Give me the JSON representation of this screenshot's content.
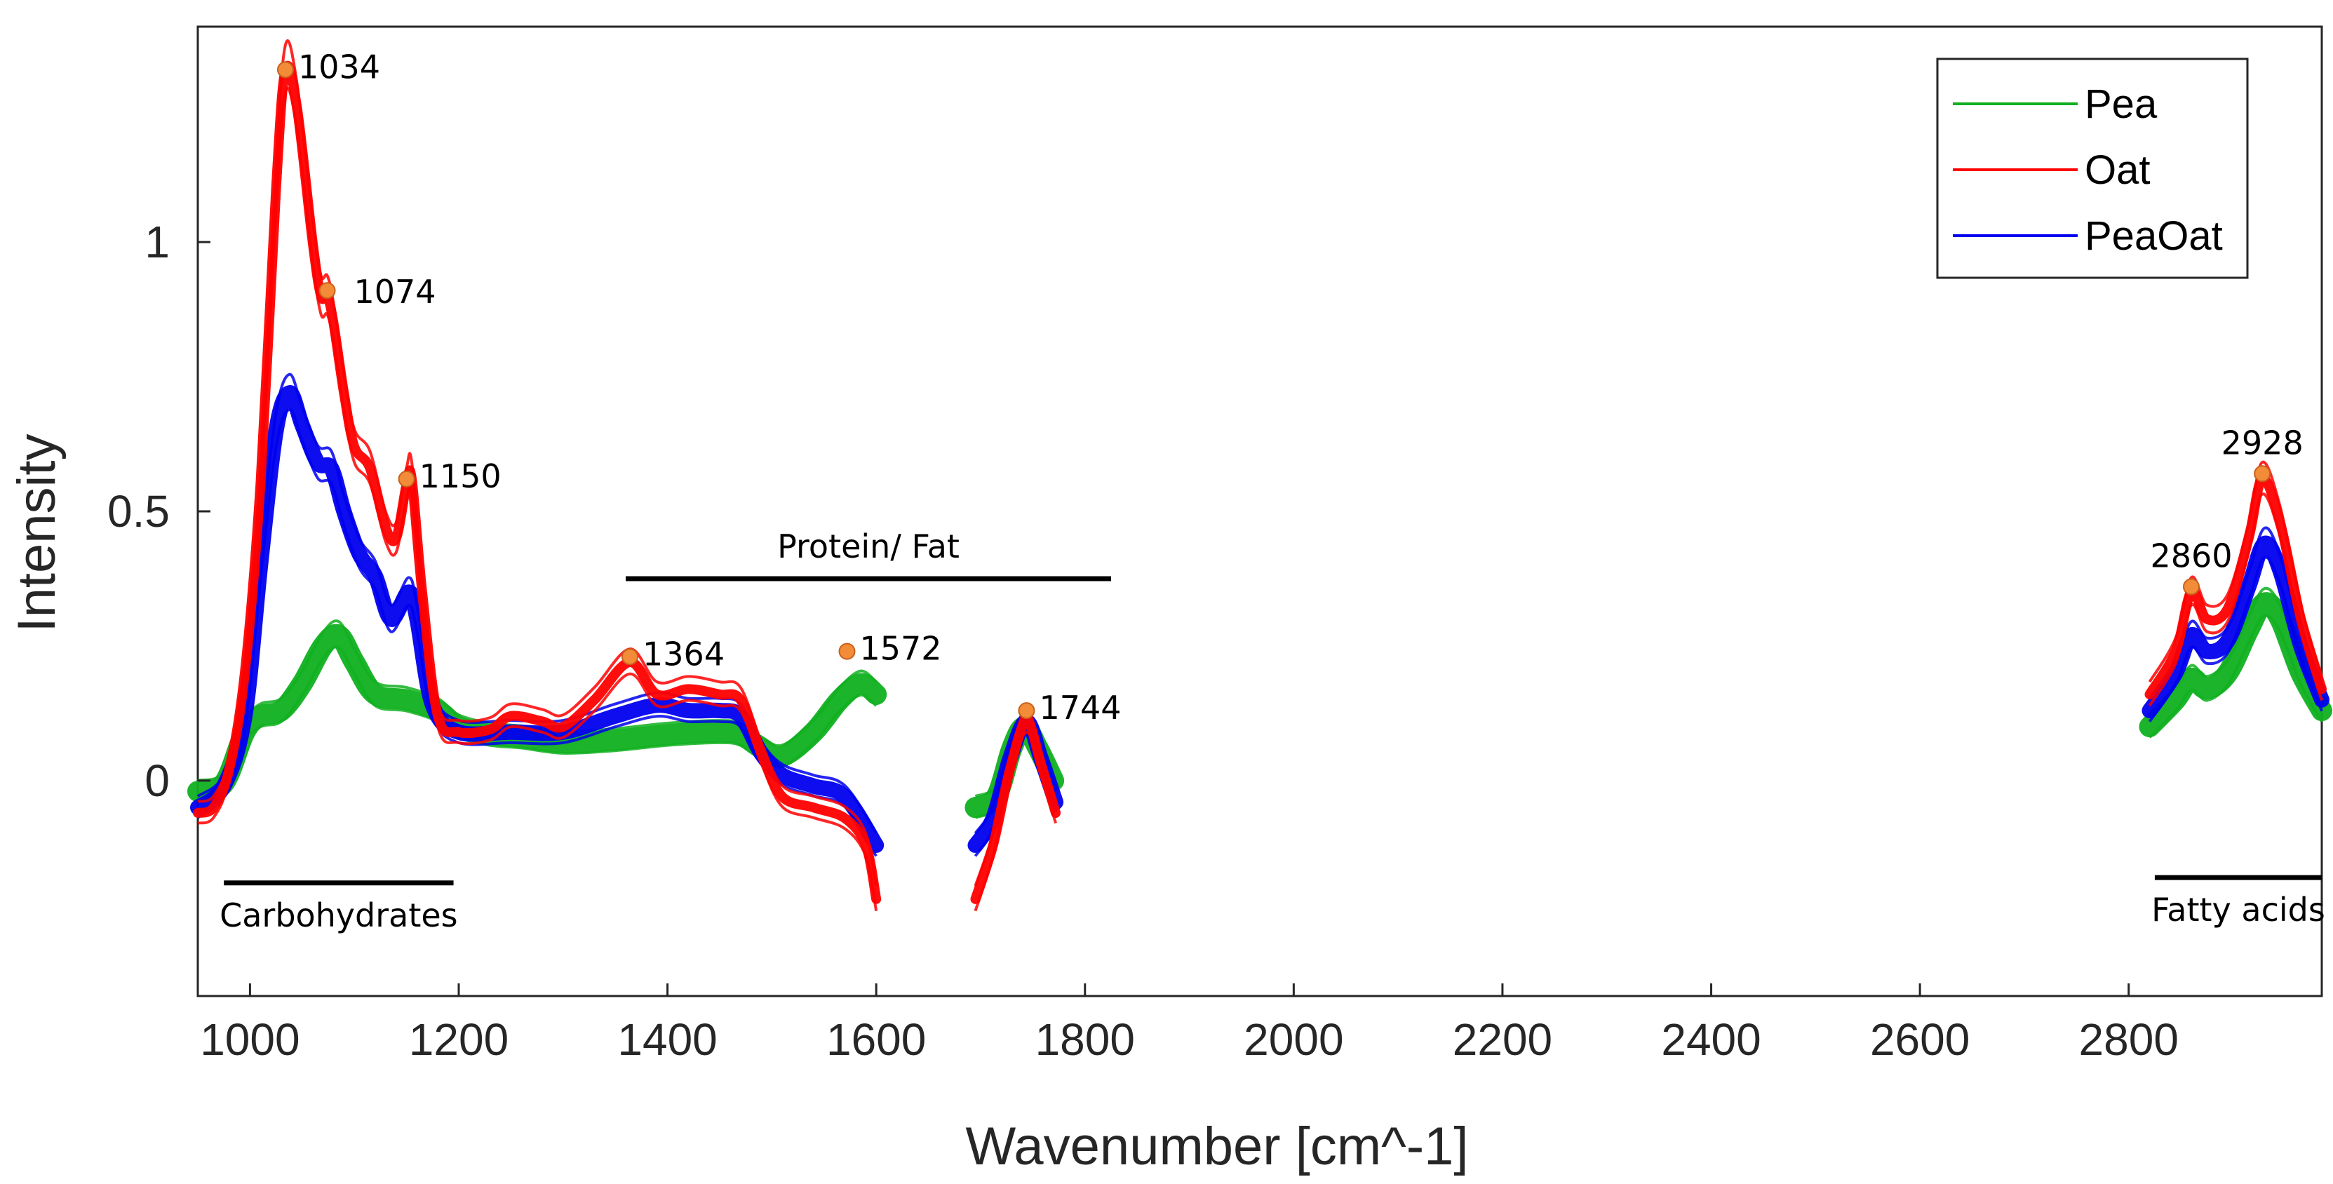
{
  "chart_data": {
    "type": "line",
    "title": "",
    "xlabel": "Wavenumber  [cm^-1]",
    "ylabel": "Intensity",
    "xlim": [
      950,
      2985
    ],
    "ylim": [
      -0.4,
      1.4
    ],
    "xticks": [
      1000,
      1200,
      1400,
      1600,
      1800,
      2000,
      2200,
      2400,
      2600,
      2800
    ],
    "yticks": [
      0,
      0.5,
      1
    ],
    "ytick_labels": [
      "0",
      "0.5",
      "1"
    ],
    "grid": false,
    "legend_position": "top-right",
    "colors": {
      "Pea": "#10b020",
      "Oat": "#ff0000",
      "PeaOat": "#0000ee",
      "marker": "#f28c38"
    },
    "series": [
      {
        "name": "Pea",
        "segments": [
          [
            [
              950,
              -0.02
            ],
            [
              975,
              -0.005
            ],
            [
              995,
              0.09
            ],
            [
              1010,
              0.12
            ],
            [
              1030,
              0.13
            ],
            [
              1050,
              0.18
            ],
            [
              1070,
              0.25
            ],
            [
              1085,
              0.27
            ],
            [
              1100,
              0.22
            ],
            [
              1120,
              0.16
            ],
            [
              1150,
              0.15
            ],
            [
              1180,
              0.13
            ],
            [
              1200,
              0.1
            ],
            [
              1230,
              0.085
            ],
            [
              1260,
              0.08
            ],
            [
              1300,
              0.07
            ],
            [
              1350,
              0.075
            ],
            [
              1400,
              0.085
            ],
            [
              1450,
              0.09
            ],
            [
              1470,
              0.085
            ],
            [
              1490,
              0.06
            ],
            [
              1510,
              0.045
            ],
            [
              1540,
              0.09
            ],
            [
              1565,
              0.15
            ],
            [
              1585,
              0.18
            ],
            [
              1600,
              0.16
            ]
          ],
          [
            [
              1695,
              -0.05
            ],
            [
              1715,
              -0.03
            ],
            [
              1730,
              0.06
            ],
            [
              1742,
              0.1
            ],
            [
              1755,
              0.06
            ],
            [
              1770,
              0.0
            ]
          ],
          [
            [
              2820,
              0.1
            ],
            [
              2845,
              0.15
            ],
            [
              2860,
              0.19
            ],
            [
              2875,
              0.17
            ],
            [
              2895,
              0.2
            ],
            [
              2915,
              0.28
            ],
            [
              2930,
              0.33
            ],
            [
              2945,
              0.3
            ],
            [
              2965,
              0.2
            ],
            [
              2985,
              0.13
            ]
          ]
        ]
      },
      {
        "name": "Oat",
        "segments": [
          [
            [
              950,
              -0.06
            ],
            [
              965,
              -0.05
            ],
            [
              980,
              0.02
            ],
            [
              995,
              0.2
            ],
            [
              1010,
              0.55
            ],
            [
              1025,
              1.1
            ],
            [
              1034,
              1.32
            ],
            [
              1045,
              1.25
            ],
            [
              1060,
              1.0
            ],
            [
              1068,
              0.9
            ],
            [
              1074,
              0.9
            ],
            [
              1080,
              0.85
            ],
            [
              1090,
              0.72
            ],
            [
              1100,
              0.62
            ],
            [
              1115,
              0.58
            ],
            [
              1130,
              0.47
            ],
            [
              1140,
              0.45
            ],
            [
              1150,
              0.55
            ],
            [
              1155,
              0.56
            ],
            [
              1165,
              0.35
            ],
            [
              1180,
              0.12
            ],
            [
              1200,
              0.09
            ],
            [
              1230,
              0.095
            ],
            [
              1250,
              0.12
            ],
            [
              1280,
              0.11
            ],
            [
              1300,
              0.1
            ],
            [
              1330,
              0.15
            ],
            [
              1364,
              0.22
            ],
            [
              1390,
              0.16
            ],
            [
              1420,
              0.17
            ],
            [
              1450,
              0.16
            ],
            [
              1470,
              0.15
            ],
            [
              1490,
              0.05
            ],
            [
              1510,
              -0.03
            ],
            [
              1540,
              -0.05
            ],
            [
              1570,
              -0.07
            ],
            [
              1590,
              -0.12
            ],
            [
              1600,
              -0.22
            ]
          ],
          [
            [
              1695,
              -0.22
            ],
            [
              1712,
              -0.12
            ],
            [
              1728,
              0.02
            ],
            [
              1744,
              0.11
            ],
            [
              1758,
              0.03
            ],
            [
              1772,
              -0.06
            ]
          ],
          [
            [
              2820,
              0.16
            ],
            [
              2845,
              0.24
            ],
            [
              2860,
              0.35
            ],
            [
              2875,
              0.3
            ],
            [
              2895,
              0.32
            ],
            [
              2915,
              0.45
            ],
            [
              2928,
              0.56
            ],
            [
              2945,
              0.48
            ],
            [
              2965,
              0.3
            ],
            [
              2985,
              0.17
            ]
          ]
        ]
      },
      {
        "name": "PeaOat",
        "segments": [
          [
            [
              950,
              -0.05
            ],
            [
              975,
              -0.01
            ],
            [
              995,
              0.12
            ],
            [
              1010,
              0.4
            ],
            [
              1025,
              0.65
            ],
            [
              1038,
              0.72
            ],
            [
              1050,
              0.66
            ],
            [
              1065,
              0.59
            ],
            [
              1078,
              0.58
            ],
            [
              1090,
              0.5
            ],
            [
              1105,
              0.42
            ],
            [
              1120,
              0.38
            ],
            [
              1135,
              0.3
            ],
            [
              1152,
              0.35
            ],
            [
              1160,
              0.3
            ],
            [
              1175,
              0.14
            ],
            [
              1200,
              0.09
            ],
            [
              1250,
              0.09
            ],
            [
              1300,
              0.09
            ],
            [
              1350,
              0.12
            ],
            [
              1390,
              0.14
            ],
            [
              1420,
              0.13
            ],
            [
              1450,
              0.13
            ],
            [
              1470,
              0.12
            ],
            [
              1490,
              0.05
            ],
            [
              1510,
              0.01
            ],
            [
              1540,
              -0.01
            ],
            [
              1570,
              -0.03
            ],
            [
              1600,
              -0.12
            ]
          ],
          [
            [
              1695,
              -0.12
            ],
            [
              1712,
              -0.07
            ],
            [
              1728,
              0.04
            ],
            [
              1744,
              0.11
            ],
            [
              1758,
              0.04
            ],
            [
              1772,
              -0.04
            ]
          ],
          [
            [
              2820,
              0.13
            ],
            [
              2845,
              0.2
            ],
            [
              2860,
              0.27
            ],
            [
              2875,
              0.24
            ],
            [
              2895,
              0.26
            ],
            [
              2915,
              0.36
            ],
            [
              2930,
              0.44
            ],
            [
              2945,
              0.39
            ],
            [
              2965,
              0.25
            ],
            [
              2985,
              0.15
            ]
          ]
        ]
      }
    ],
    "peak_markers": [
      {
        "label": "1034",
        "x": 1034,
        "y": 1.32
      },
      {
        "label": "1074",
        "x": 1074,
        "y": 0.91
      },
      {
        "label": "1150",
        "x": 1150,
        "y": 0.56
      },
      {
        "label": "1364",
        "x": 1364,
        "y": 0.23
      },
      {
        "label": "1572",
        "x": 1572,
        "y": 0.24
      },
      {
        "label": "1744",
        "x": 1744,
        "y": 0.13
      },
      {
        "label": "2860",
        "x": 2860,
        "y": 0.36
      },
      {
        "label": "2928",
        "x": 2928,
        "y": 0.57
      }
    ],
    "region_annotations": [
      {
        "label": "Carbohydrates",
        "x_start": 975,
        "x_end": 1195,
        "y": -0.19,
        "text_pos": "below"
      },
      {
        "label": "Protein/ Fat",
        "x_start": 1360,
        "x_end": 1825,
        "y": 0.375,
        "text_pos": "above"
      },
      {
        "label": "Fatty acids",
        "x_start": 2825,
        "x_end": 2985,
        "y": -0.18,
        "text_pos": "below"
      }
    ]
  }
}
